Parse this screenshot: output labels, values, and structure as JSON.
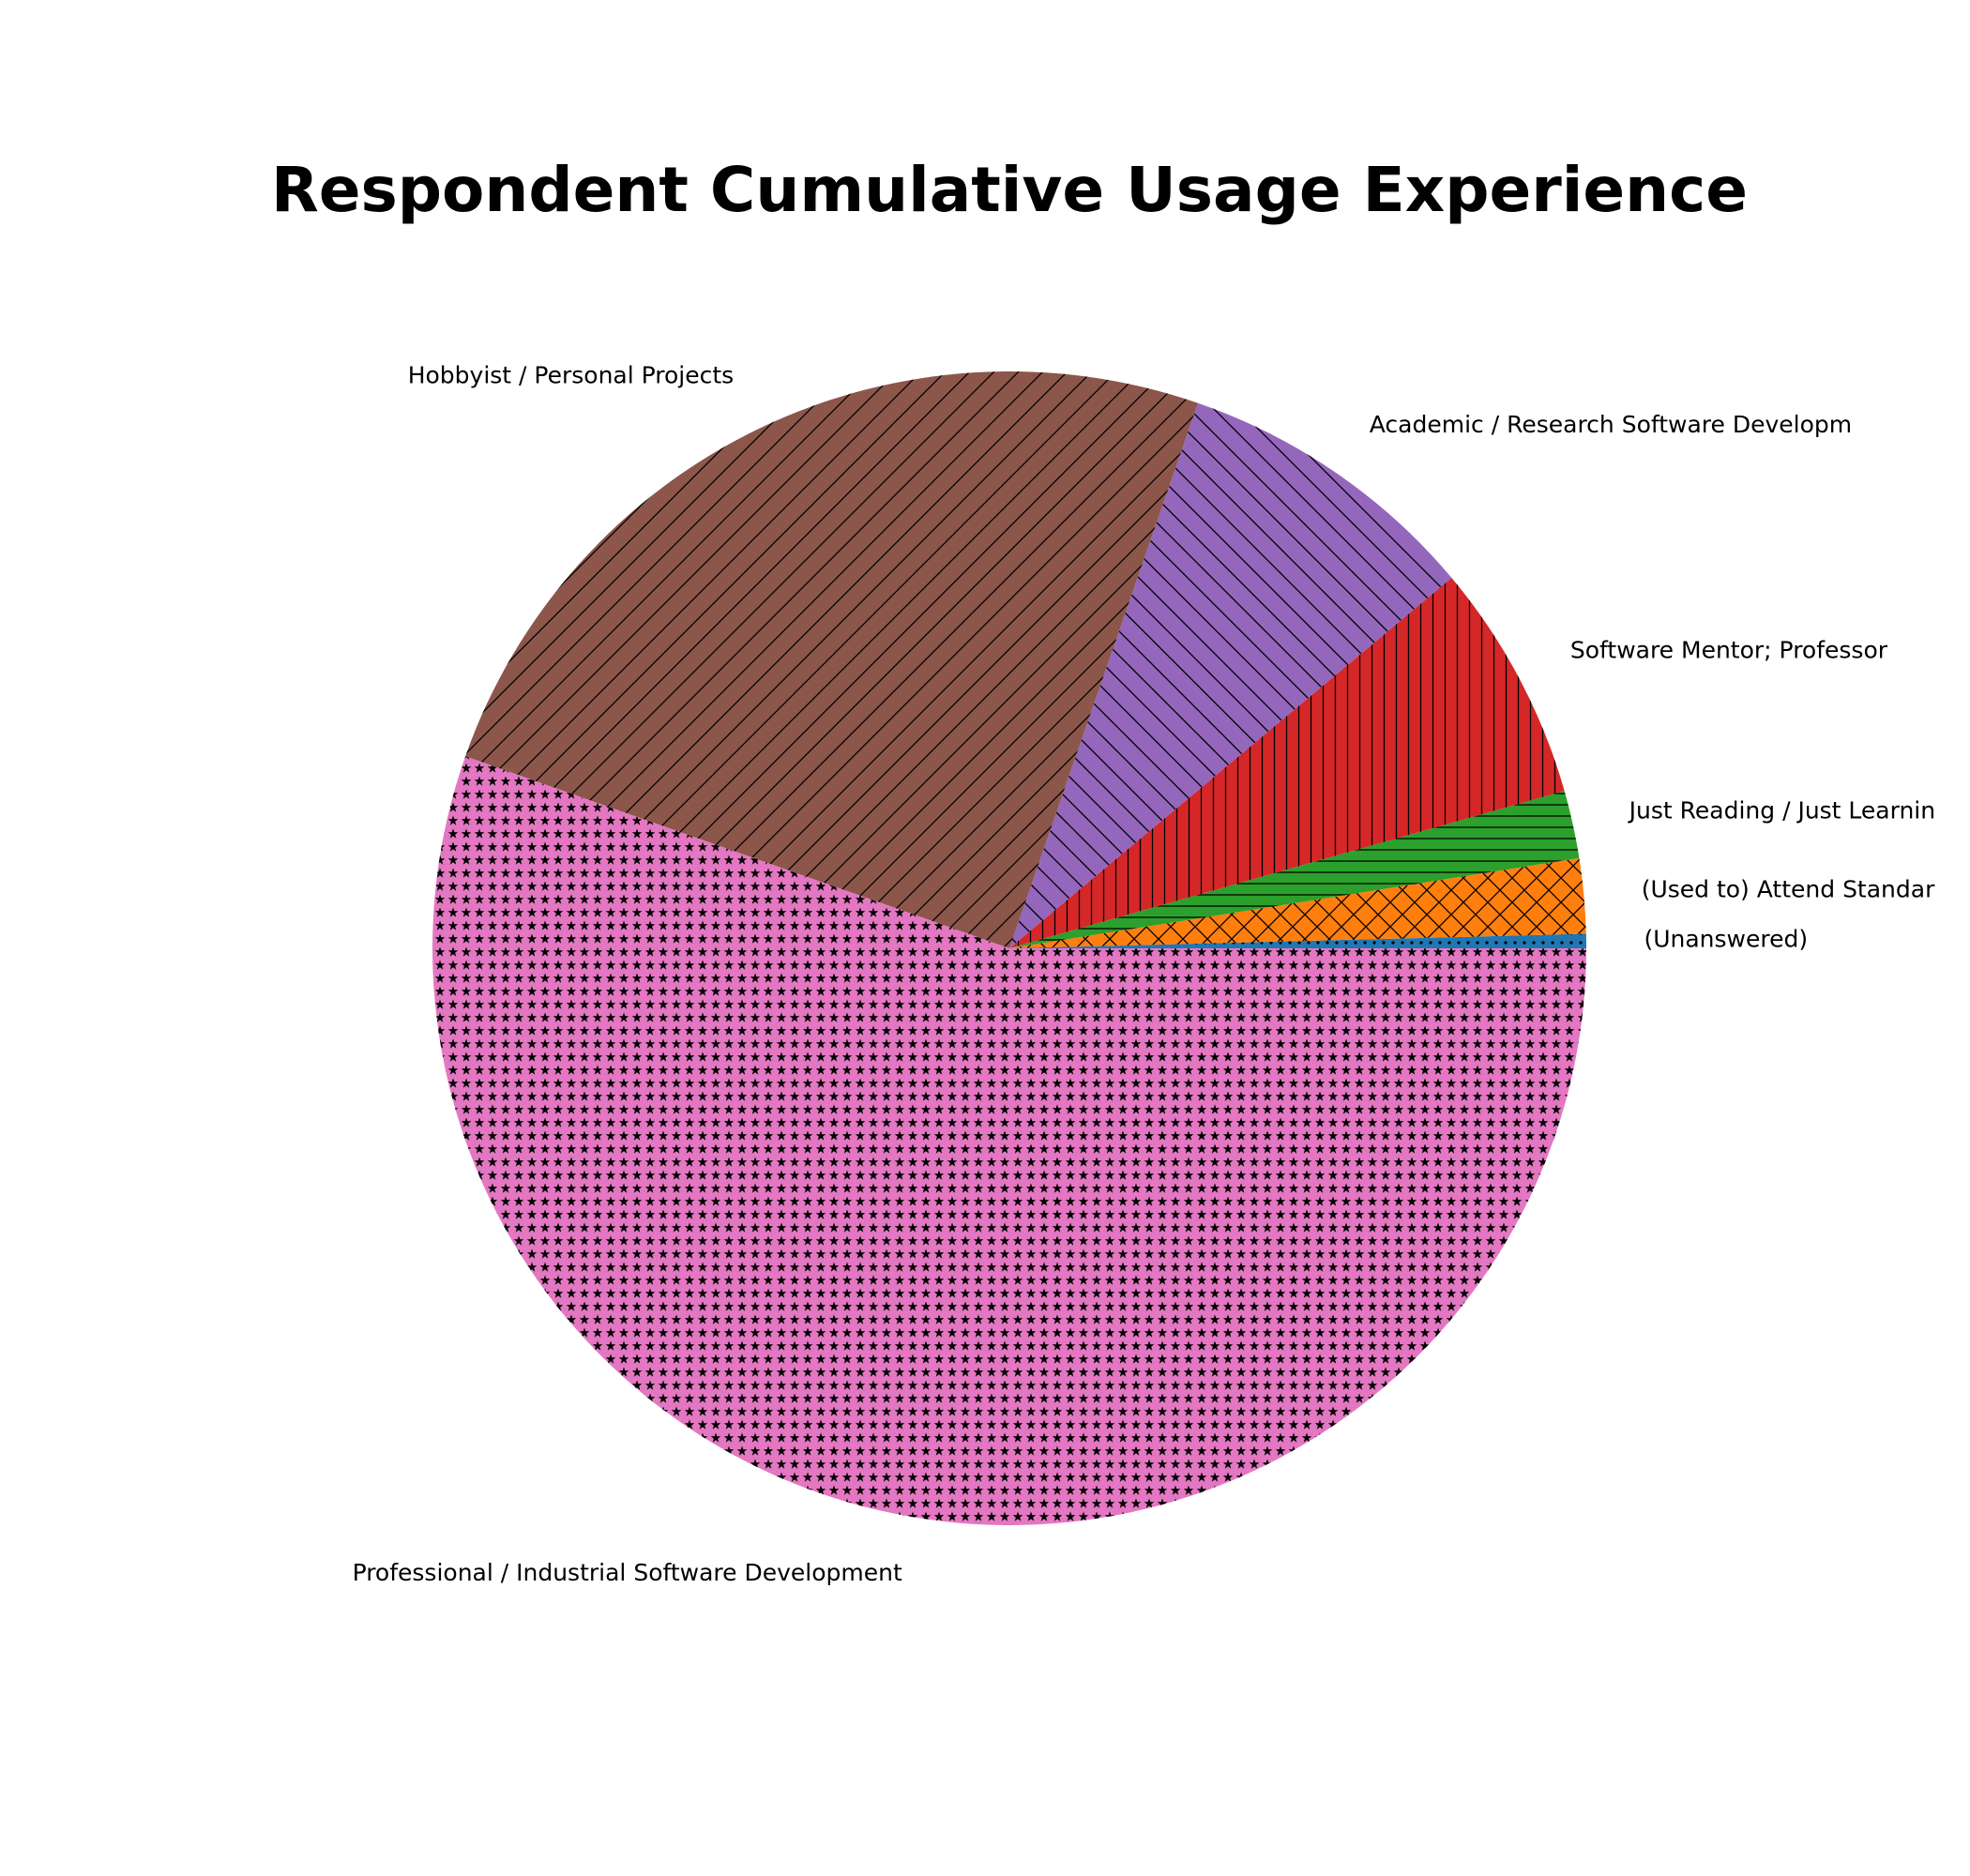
{
  "chart_data": {
    "type": "pie",
    "title": "Respondent Cumulative Usage Experience",
    "start_angle_deg": 0,
    "direction": "counterclockwise",
    "slices": [
      {
        "label": "(Unanswered)",
        "value": 0.4,
        "color": "#1f77b4",
        "hatch": "dots"
      },
      {
        "label": "(Used to) Attend Standar",
        "value": 2.1,
        "color": "#ff7f0e",
        "hatch": "cross"
      },
      {
        "label": "Just Reading / Just Learnin",
        "value": 1.9,
        "color": "#2ca02c",
        "hatch": "horizontal"
      },
      {
        "label": "Software Mentor; Professor",
        "value": 6.7,
        "color": "#d62728",
        "hatch": "vertical"
      },
      {
        "label": "Academic / Research Software Developm",
        "value": 8.6,
        "color": "#9467bd",
        "hatch": "backslash"
      },
      {
        "label": "Hobbyist / Personal Projects",
        "value": 24.9,
        "color": "#8c564b",
        "hatch": "slash"
      },
      {
        "label": "Professional / Industrial Software Development",
        "value": 55.4,
        "color": "#e377c2",
        "hatch": "stars"
      }
    ]
  }
}
